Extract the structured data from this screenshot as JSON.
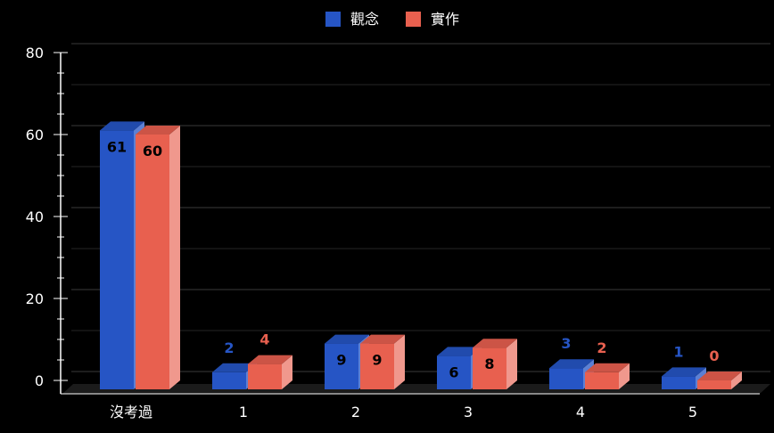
{
  "chart_data": {
    "type": "bar",
    "categories": [
      "沒考過",
      "1",
      "2",
      "3",
      "4",
      "5"
    ],
    "series": [
      {
        "name": "觀念",
        "values": [
          61,
          2,
          9,
          6,
          3,
          1
        ],
        "color": "#2655c5"
      },
      {
        "name": "實作",
        "values": [
          60,
          4,
          9,
          8,
          2,
          0
        ],
        "color": "#e8604f"
      }
    ],
    "y_ticks": [
      "0",
      "20",
      "40",
      "60",
      "80"
    ],
    "ylim": [
      0,
      80
    ],
    "legend_position": "top-center",
    "grid": true,
    "style": "3d-bar"
  }
}
